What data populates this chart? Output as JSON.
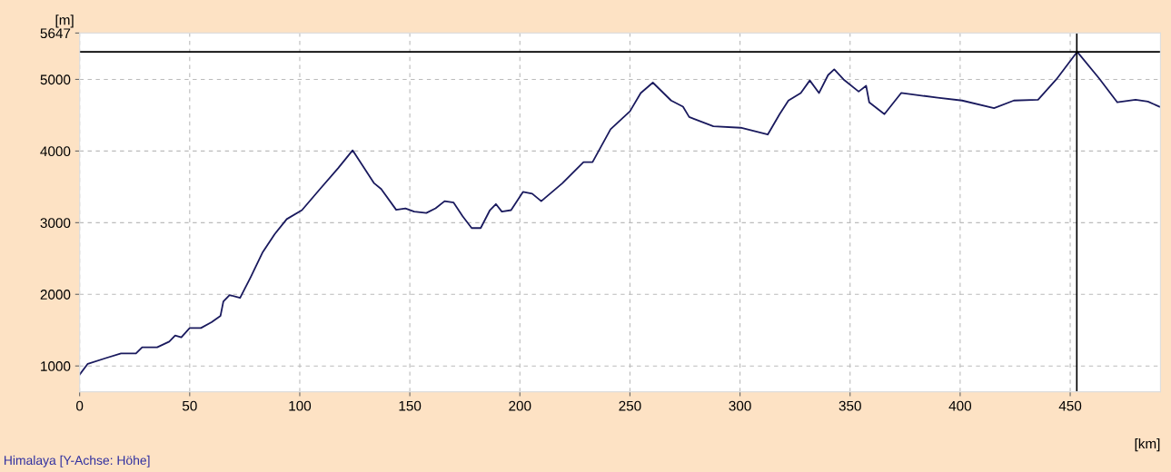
{
  "chart_data": {
    "type": "line",
    "xlabel": "[km]",
    "ylabel": "[m]",
    "annotations": [
      "Himalaya [Y-Achse: Höhe]"
    ],
    "xlim": [
      0,
      491
    ],
    "ylim": [
      640,
      5647
    ],
    "xticks": [
      0,
      50,
      100,
      150,
      200,
      250,
      300,
      350,
      400,
      450
    ],
    "yticks": [
      1000,
      2000,
      3000,
      4000,
      5000,
      5647
    ],
    "grid": true,
    "legend": false,
    "marker": "none",
    "line_style": "solid",
    "ref_lines": [
      {
        "axis": "x",
        "value": 453,
        "label": null,
        "color": "#000000"
      },
      {
        "axis": "y",
        "value": 5385,
        "label": null,
        "color": "#000000"
      }
    ],
    "series": [
      {
        "color": "#1a1a5e",
        "x": [
          0,
          3.7,
          11.9,
          18.8,
          25.6,
          28.4,
          35.2,
          40.7,
          43.4,
          46.2,
          50,
          55.1,
          59.9,
          64,
          65.3,
          68.1,
          72.9,
          77.7,
          83.2,
          88.6,
          94.1,
          101,
          109.2,
          117.4,
          124,
          133.8,
          137,
          143.8,
          148,
          152,
          157.5,
          161.7,
          165.8,
          169.9,
          174,
          178.1,
          182.2,
          186.4,
          189.1,
          191.8,
          196,
          201.4,
          205.6,
          209.7,
          219.3,
          228.9,
          233,
          241.2,
          250,
          254.9,
          260.4,
          268.7,
          274.1,
          276.9,
          287.9,
          300.3,
          312.6,
          318,
          322,
          327.6,
          331.7,
          335.9,
          340,
          342.8,
          347,
          353.9,
          357.3,
          358.7,
          365.6,
          373.2,
          389.8,
          400.9,
          415.4,
          424.4,
          435.4,
          443.7,
          453.2,
          463.1,
          471.4,
          479.7,
          485.3,
          490.5
        ],
        "values": [
          880,
          1030,
          1110,
          1175,
          1175,
          1260,
          1260,
          1340,
          1425,
          1400,
          1530,
          1530,
          1610,
          1700,
          1900,
          1990,
          1950,
          2240,
          2590,
          2840,
          3050,
          3175,
          3470,
          3760,
          4010,
          3550,
          3470,
          3180,
          3200,
          3155,
          3135,
          3200,
          3300,
          3280,
          3090,
          2925,
          2925,
          3175,
          3260,
          3155,
          3175,
          3430,
          3405,
          3300,
          3550,
          3845,
          3845,
          4305,
          4555,
          4810,
          4955,
          4705,
          4620,
          4475,
          4345,
          4325,
          4230,
          4515,
          4705,
          4810,
          4985,
          4810,
          5060,
          5140,
          5000,
          4830,
          4910,
          4680,
          4515,
          4810,
          4745,
          4705,
          4600,
          4705,
          4715,
          5000,
          5385,
          5015,
          4680,
          4715,
          4690,
          4620
        ]
      }
    ]
  }
}
